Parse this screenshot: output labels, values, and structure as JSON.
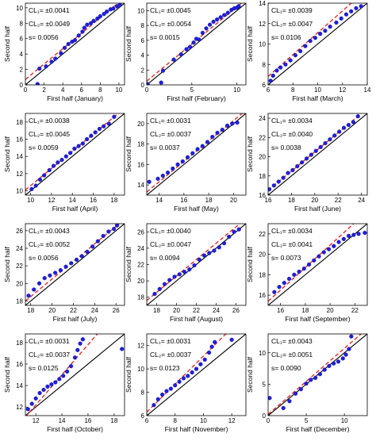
{
  "figure": {
    "ylabel": "Second half",
    "colors": {
      "points": "#1f1fe0",
      "ref_line": "#000000",
      "fit_line": "#e0201c",
      "axis": "#000000"
    }
  },
  "chart_data": [
    {
      "type": "scatter",
      "xlabel": "First half (January)",
      "ylabel": "Second half",
      "xlim": [
        0,
        10.6
      ],
      "ylim": [
        0,
        10.6
      ],
      "xticks": [
        0,
        2,
        4,
        6,
        8,
        10
      ],
      "yticks": [
        0,
        2,
        4,
        6,
        8,
        10
      ],
      "annotations": {
        "cl1": "CL₁= ±0.0041",
        "cl2": "CL₂= ±0.0049",
        "s": "s= 0.0056"
      },
      "fit": {
        "slope": 1.0,
        "intercept": 0.7
      },
      "points": [
        [
          1.3,
          0.1
        ],
        [
          1.5,
          2.1
        ],
        [
          2.2,
          2.4
        ],
        [
          2.8,
          3.0
        ],
        [
          3.2,
          3.4
        ],
        [
          3.8,
          4.1
        ],
        [
          4.2,
          4.8
        ],
        [
          4.6,
          5.3
        ],
        [
          5.0,
          5.6
        ],
        [
          5.3,
          5.8
        ],
        [
          5.7,
          6.4
        ],
        [
          6.1,
          6.9
        ],
        [
          6.3,
          7.4
        ],
        [
          6.6,
          7.8
        ],
        [
          7.0,
          8.0
        ],
        [
          7.3,
          8.3
        ],
        [
          7.7,
          8.6
        ],
        [
          8.0,
          8.9
        ],
        [
          8.4,
          9.2
        ],
        [
          8.7,
          9.5
        ],
        [
          9.1,
          9.8
        ],
        [
          9.4,
          9.9
        ],
        [
          9.8,
          10.2
        ],
        [
          10.1,
          10.4
        ]
      ]
    },
    {
      "type": "scatter",
      "xlabel": "First half (February)",
      "ylabel": "Second half",
      "xlim": [
        0,
        11
      ],
      "ylim": [
        0,
        11
      ],
      "xticks": [
        0,
        5,
        10
      ],
      "yticks": [
        0,
        2,
        4,
        6,
        8,
        10
      ],
      "annotations": {
        "cl1": "CL₁= ±0.0045",
        "cl2": "CL₂= ±0.0054",
        "s": "s= 0.0015"
      },
      "fit": {
        "slope": 1.0,
        "intercept": 0.5
      },
      "points": [
        [
          0.1,
          0.1
        ],
        [
          1.6,
          0.3
        ],
        [
          1.8,
          1.9
        ],
        [
          3.0,
          3.4
        ],
        [
          3.8,
          4.1
        ],
        [
          4.4,
          4.8
        ],
        [
          4.8,
          5.1
        ],
        [
          5.2,
          5.7
        ],
        [
          5.5,
          6.2
        ],
        [
          5.8,
          6.1
        ],
        [
          6.2,
          7.0
        ],
        [
          6.6,
          7.6
        ],
        [
          7.0,
          8.1
        ],
        [
          7.4,
          8.5
        ],
        [
          7.8,
          8.8
        ],
        [
          8.2,
          9.1
        ],
        [
          8.6,
          9.4
        ],
        [
          9.0,
          9.7
        ],
        [
          9.4,
          10.1
        ],
        [
          9.7,
          10.3
        ],
        [
          10.0,
          10.4
        ],
        [
          10.2,
          10.6
        ]
      ]
    },
    {
      "type": "scatter",
      "xlabel": "First half (March)",
      "ylabel": "Second half",
      "xlim": [
        6,
        14
      ],
      "ylim": [
        6,
        14
      ],
      "xticks": [
        6,
        8,
        10,
        12,
        14
      ],
      "yticks": [
        6,
        8,
        10,
        12,
        14
      ],
      "annotations": {
        "cl1": "CL₁= ±0.0039",
        "cl2": "CL₂= ±0.0047",
        "s": "s= 0.0106"
      },
      "fit": {
        "slope": 1.07,
        "intercept": 0.4
      },
      "points": [
        [
          6.2,
          6.4
        ],
        [
          6.4,
          6.9
        ],
        [
          6.7,
          7.4
        ],
        [
          7.0,
          7.7
        ],
        [
          7.4,
          8.0
        ],
        [
          7.8,
          8.4
        ],
        [
          8.2,
          8.9
        ],
        [
          8.6,
          9.3
        ],
        [
          9.0,
          9.8
        ],
        [
          9.4,
          10.3
        ],
        [
          9.8,
          10.6
        ],
        [
          10.2,
          11.0
        ],
        [
          10.6,
          11.3
        ],
        [
          11.0,
          11.7
        ],
        [
          11.5,
          12.1
        ],
        [
          11.9,
          12.5
        ],
        [
          12.3,
          12.9
        ],
        [
          12.7,
          13.2
        ],
        [
          13.1,
          13.5
        ],
        [
          13.5,
          13.7
        ]
      ]
    },
    {
      "type": "scatter",
      "xlabel": "First half (April)",
      "ylabel": "Second half",
      "xlim": [
        9.5,
        19
      ],
      "ylim": [
        9.5,
        19
      ],
      "xticks": [
        10,
        12,
        14,
        16,
        18
      ],
      "yticks": [
        10,
        12,
        14,
        16,
        18
      ],
      "annotations": {
        "cl1": "CL₁= ±0.0038",
        "cl2": "CL₂= ±0.0045",
        "s": "s= 0.0059"
      },
      "fit": {
        "slope": 1.0,
        "intercept": 0.6
      },
      "points": [
        [
          10.1,
          10.2
        ],
        [
          10.5,
          10.6
        ],
        [
          10.9,
          11.3
        ],
        [
          11.3,
          11.8
        ],
        [
          11.8,
          12.4
        ],
        [
          12.2,
          12.9
        ],
        [
          12.6,
          13.3
        ],
        [
          13.0,
          13.6
        ],
        [
          13.4,
          14.0
        ],
        [
          13.8,
          14.4
        ],
        [
          14.2,
          14.9
        ],
        [
          14.6,
          15.2
        ],
        [
          15.0,
          15.5
        ],
        [
          15.4,
          16.0
        ],
        [
          15.8,
          16.4
        ],
        [
          16.2,
          16.8
        ],
        [
          16.6,
          17.2
        ],
        [
          17.0,
          17.5
        ],
        [
          17.5,
          17.8
        ],
        [
          18.0,
          18.6
        ]
      ]
    },
    {
      "type": "scatter",
      "xlabel": "First half (May)",
      "ylabel": "Second half",
      "xlim": [
        13,
        21
      ],
      "ylim": [
        13,
        21
      ],
      "xticks": [
        14,
        16,
        18,
        20
      ],
      "yticks": [
        14,
        16,
        18,
        20
      ],
      "annotations": {
        "cl1": "CL₁= ±0.0031",
        "cl2": "CL₂= ±0.0037",
        "s": "s= 0.0037"
      },
      "fit": {
        "slope": 1.0,
        "intercept": 0.3
      },
      "points": [
        [
          13.2,
          14.3
        ],
        [
          13.9,
          14.6
        ],
        [
          14.3,
          14.9
        ],
        [
          14.7,
          15.2
        ],
        [
          15.1,
          15.6
        ],
        [
          15.5,
          16.0
        ],
        [
          15.9,
          16.3
        ],
        [
          16.3,
          16.7
        ],
        [
          16.7,
          17.1
        ],
        [
          17.1,
          17.5
        ],
        [
          17.5,
          17.8
        ],
        [
          17.9,
          18.2
        ],
        [
          18.3,
          18.7
        ],
        [
          18.7,
          19.1
        ],
        [
          19.1,
          19.4
        ],
        [
          19.5,
          19.8
        ],
        [
          19.9,
          20.0
        ],
        [
          20.3,
          20.1
        ]
      ]
    },
    {
      "type": "scatter",
      "xlabel": "First half (June)",
      "ylabel": "Second half",
      "xlim": [
        16,
        24.5
      ],
      "ylim": [
        16,
        24.5
      ],
      "xticks": [
        16,
        18,
        20,
        22,
        24
      ],
      "yticks": [
        16,
        18,
        20,
        22,
        24
      ],
      "annotations": {
        "cl1": "CL₁= ±0.0034",
        "cl2": "CL₂= ±0.0040",
        "s": "s= 0.0038"
      },
      "fit": {
        "slope": 1.0,
        "intercept": 0.5
      },
      "points": [
        [
          16.1,
          16.6
        ],
        [
          16.5,
          17.0
        ],
        [
          16.9,
          17.4
        ],
        [
          17.3,
          17.8
        ],
        [
          17.7,
          18.3
        ],
        [
          18.1,
          18.6
        ],
        [
          18.5,
          19.0
        ],
        [
          18.9,
          19.4
        ],
        [
          19.3,
          19.8
        ],
        [
          19.7,
          20.2
        ],
        [
          20.1,
          20.6
        ],
        [
          20.5,
          21.0
        ],
        [
          20.9,
          21.4
        ],
        [
          21.3,
          21.8
        ],
        [
          21.7,
          22.2
        ],
        [
          22.1,
          22.6
        ],
        [
          22.5,
          23.0
        ],
        [
          22.9,
          23.3
        ],
        [
          23.3,
          23.6
        ],
        [
          23.7,
          24.2
        ]
      ]
    },
    {
      "type": "scatter",
      "xlabel": "First half (July)",
      "ylabel": "Second half",
      "xlim": [
        17.5,
        26.8
      ],
      "ylim": [
        17.5,
        26.8
      ],
      "xticks": [
        18,
        20,
        22,
        24,
        26
      ],
      "yticks": [
        18,
        20,
        22,
        24,
        26
      ],
      "annotations": {
        "cl1": "CL₁= ±0.0043",
        "cl2": "CL₂= ±0.0052",
        "s": "s= 0.0056"
      },
      "fit": {
        "slope": 1.0,
        "intercept": 0.5
      },
      "points": [
        [
          17.8,
          18.6
        ],
        [
          18.3,
          19.3
        ],
        [
          18.8,
          20.0
        ],
        [
          19.3,
          20.6
        ],
        [
          19.8,
          20.9
        ],
        [
          20.3,
          21.2
        ],
        [
          20.8,
          21.5
        ],
        [
          21.3,
          21.9
        ],
        [
          21.8,
          22.3
        ],
        [
          22.3,
          22.7
        ],
        [
          22.8,
          23.1
        ],
        [
          23.3,
          23.6
        ],
        [
          23.8,
          24.2
        ],
        [
          24.3,
          24.8
        ],
        [
          24.8,
          25.4
        ],
        [
          25.3,
          25.9
        ],
        [
          25.8,
          26.2
        ],
        [
          26.1,
          26.6
        ]
      ]
    },
    {
      "type": "scatter",
      "xlabel": "First half (August)",
      "ylabel": "Second half",
      "xlim": [
        17,
        27
      ],
      "ylim": [
        17,
        27
      ],
      "xticks": [
        18,
        20,
        22,
        24,
        26
      ],
      "yticks": [
        18,
        20,
        22,
        24,
        26
      ],
      "annotations": {
        "cl1": "CL₁= ±0.0040",
        "cl2": "CL₂= ±0.0047",
        "s": "s= 0.0094"
      },
      "fit": {
        "slope": 1.0,
        "intercept": 0.6
      },
      "points": [
        [
          17.8,
          18.4
        ],
        [
          18.3,
          19.0
        ],
        [
          18.8,
          19.6
        ],
        [
          19.3,
          20.1
        ],
        [
          19.8,
          20.5
        ],
        [
          20.3,
          20.8
        ],
        [
          20.8,
          21.1
        ],
        [
          21.3,
          21.4
        ],
        [
          21.8,
          21.9
        ],
        [
          22.3,
          22.6
        ],
        [
          22.8,
          23.1
        ],
        [
          23.3,
          23.4
        ],
        [
          23.8,
          23.7
        ],
        [
          24.3,
          24.1
        ],
        [
          24.8,
          24.6
        ],
        [
          25.3,
          25.4
        ],
        [
          25.8,
          26.0
        ],
        [
          26.3,
          26.3
        ]
      ]
    },
    {
      "type": "scatter",
      "xlabel": "First half (September)",
      "ylabel": "Second half",
      "xlim": [
        15,
        23
      ],
      "ylim": [
        15,
        23
      ],
      "xticks": [
        16,
        18,
        20,
        22
      ],
      "yticks": [
        16,
        18,
        20,
        22
      ],
      "annotations": {
        "cl1": "CL₁= ±0.0034",
        "cl2": "CL₂= ±0.0041",
        "s": "s= 0.0073"
      },
      "fit": {
        "slope": 1.1,
        "intercept": -1.1
      },
      "points": [
        [
          15.5,
          16.3
        ],
        [
          15.9,
          16.8
        ],
        [
          16.3,
          17.2
        ],
        [
          16.7,
          17.6
        ],
        [
          17.1,
          18.0
        ],
        [
          17.5,
          18.3
        ],
        [
          17.9,
          18.6
        ],
        [
          18.3,
          19.0
        ],
        [
          18.7,
          19.4
        ],
        [
          19.1,
          19.8
        ],
        [
          19.5,
          20.2
        ],
        [
          19.9,
          20.5
        ],
        [
          20.3,
          20.8
        ],
        [
          20.7,
          21.2
        ],
        [
          21.1,
          21.5
        ],
        [
          21.5,
          21.8
        ],
        [
          21.9,
          21.9
        ],
        [
          22.3,
          22.0
        ],
        [
          22.8,
          22.1
        ]
      ]
    },
    {
      "type": "scatter",
      "xlabel": "First half (October)",
      "ylabel": "Second half",
      "xlim": [
        11.2,
        18.8
      ],
      "ylim": [
        11.2,
        18.8
      ],
      "xticks": [
        12,
        14,
        16,
        18
      ],
      "yticks": [
        12,
        14,
        16,
        18
      ],
      "annotations": {
        "cl1": "CL₁= ±0.0031",
        "cl2": "CL₂= ±0.0037",
        "s": "s= 0.0125"
      },
      "fit": {
        "slope": 1.4,
        "intercept": -4.6
      },
      "points": [
        [
          11.4,
          11.8
        ],
        [
          11.7,
          12.3
        ],
        [
          12.0,
          12.8
        ],
        [
          12.3,
          13.3
        ],
        [
          12.6,
          13.6
        ],
        [
          12.9,
          13.9
        ],
        [
          13.2,
          14.1
        ],
        [
          13.5,
          14.3
        ],
        [
          13.8,
          14.6
        ],
        [
          14.1,
          14.9
        ],
        [
          14.4,
          15.3
        ],
        [
          14.7,
          15.8
        ],
        [
          15.0,
          16.6
        ],
        [
          15.2,
          17.3
        ],
        [
          15.4,
          17.9
        ],
        [
          15.6,
          18.3
        ],
        [
          18.6,
          17.4
        ]
      ]
    },
    {
      "type": "scatter",
      "xlabel": "First half (November)",
      "ylabel": "Second half",
      "xlim": [
        6,
        13
      ],
      "ylim": [
        6,
        13
      ],
      "xticks": [
        6,
        8,
        10,
        12
      ],
      "yticks": [
        6,
        8,
        10,
        12
      ],
      "annotations": {
        "cl1": "CL₁= ±0.0031",
        "cl2": "CL₂= ±0.0037",
        "s": "s= 0.0123"
      },
      "fit": {
        "slope": 1.2,
        "intercept": -0.9
      },
      "points": [
        [
          6.5,
          6.9
        ],
        [
          6.8,
          7.4
        ],
        [
          7.1,
          7.8
        ],
        [
          7.4,
          8.1
        ],
        [
          7.7,
          8.3
        ],
        [
          8.0,
          8.6
        ],
        [
          8.3,
          8.9
        ],
        [
          8.6,
          9.2
        ],
        [
          8.9,
          9.4
        ],
        [
          9.2,
          9.7
        ],
        [
          9.5,
          10.0
        ],
        [
          9.8,
          10.4
        ],
        [
          10.1,
          10.8
        ],
        [
          10.4,
          11.4
        ],
        [
          10.6,
          11.9
        ],
        [
          10.8,
          12.3
        ],
        [
          12.0,
          12.5
        ]
      ]
    },
    {
      "type": "scatter",
      "xlabel": "First half (December)",
      "ylabel": "Second half",
      "xlim": [
        0,
        13
      ],
      "ylim": [
        0,
        13
      ],
      "xticks": [
        0,
        5,
        10
      ],
      "yticks": [
        0,
        5,
        10
      ],
      "annotations": {
        "cl1": "CL₁= ±0.0043",
        "cl2": "CL₂= ±0.0051",
        "s": "s= 0.0090"
      },
      "fit": {
        "slope": 1.05,
        "intercept": 0.2
      },
      "points": [
        [
          0.2,
          2.8
        ],
        [
          2.0,
          1.2
        ],
        [
          2.8,
          2.3
        ],
        [
          3.6,
          3.5
        ],
        [
          4.3,
          4.2
        ],
        [
          5.0,
          5.1
        ],
        [
          5.6,
          5.7
        ],
        [
          6.2,
          6.0
        ],
        [
          6.8,
          6.6
        ],
        [
          7.4,
          7.3
        ],
        [
          8.0,
          7.9
        ],
        [
          8.6,
          8.3
        ],
        [
          9.2,
          8.6
        ],
        [
          9.8,
          9.1
        ],
        [
          10.2,
          9.7
        ],
        [
          10.6,
          10.6
        ],
        [
          10.9,
          12.6
        ]
      ]
    }
  ]
}
